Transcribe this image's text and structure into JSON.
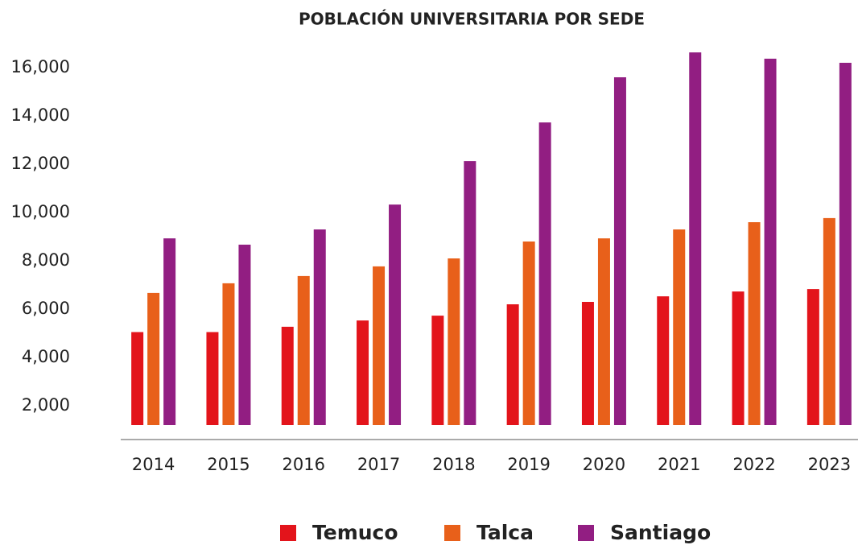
{
  "chart_data": {
    "type": "bar",
    "title": "POBLACIÓN UNIVERSITARIA POR SEDE",
    "categories": [
      "2014",
      "2015",
      "2016",
      "2017",
      "2018",
      "2019",
      "2020",
      "2021",
      "2022",
      "2023"
    ],
    "series": [
      {
        "name": "Temuco",
        "color": "#e3141b",
        "values": [
          5050,
          5050,
          5270,
          5530,
          5730,
          6200,
          6300,
          6530,
          6730,
          6830
        ]
      },
      {
        "name": "Talca",
        "color": "#e8601a",
        "values": [
          6670,
          7070,
          7370,
          7770,
          8100,
          8800,
          8930,
          9300,
          9600,
          9770
        ]
      },
      {
        "name": "Santiago",
        "color": "#921e82",
        "values": [
          8930,
          8670,
          9300,
          10330,
          12130,
          13730,
          15600,
          16630,
          16370,
          16200
        ]
      }
    ],
    "ylim": [
      1200,
      16800
    ],
    "yticks": [
      {
        "value": 2000,
        "label": "2,000"
      },
      {
        "value": 4000,
        "label": "4,000"
      },
      {
        "value": 6000,
        "label": "6,000"
      },
      {
        "value": 8000,
        "label": "8,000"
      },
      {
        "value": 10000,
        "label": "10,000"
      },
      {
        "value": 12000,
        "label": "12,000"
      },
      {
        "value": 14000,
        "label": "14,000"
      },
      {
        "value": 16000,
        "label": "16,000"
      }
    ],
    "grid": false,
    "legend": "bottom"
  }
}
